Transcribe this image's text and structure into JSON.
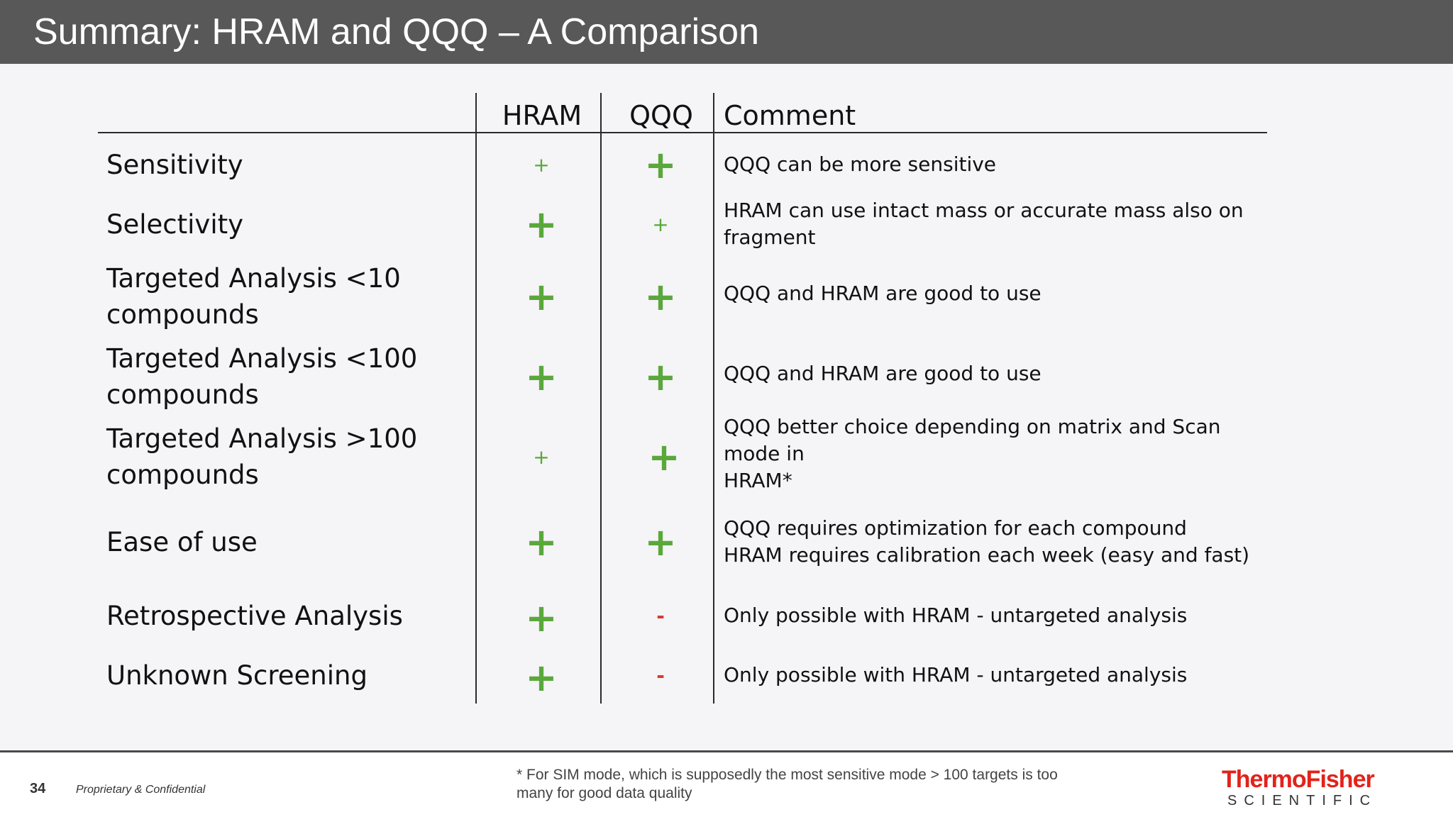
{
  "title": "Summary: HRAM and QQQ – A Comparison",
  "table": {
    "headers": {
      "hram": "HRAM",
      "qqq": "QQQ",
      "comment": "Comment"
    },
    "rows": [
      {
        "label": "Sensitivity",
        "hram": "+",
        "qqq": "+",
        "comment": [
          "QQQ can be more sensitive"
        ]
      },
      {
        "label": "Selectivity",
        "hram": "+",
        "qqq": "+",
        "comment": [
          "HRAM can use intact mass or accurate mass also on",
          "fragment"
        ]
      },
      {
        "label": "Targeted Analysis <10 compounds",
        "hram": "+",
        "qqq": "+",
        "comment": [
          "QQQ and HRAM are good to use"
        ]
      },
      {
        "label": "Targeted Analysis <100 compounds",
        "hram": "+",
        "qqq": "+",
        "comment": [
          "QQQ and HRAM are good to use"
        ]
      },
      {
        "label": "Targeted Analysis >100 compounds",
        "hram": "+",
        "qqq": "+",
        "comment": [
          "QQQ better choice depending on matrix and Scan mode in",
          "HRAM*"
        ]
      },
      {
        "label": "Ease of use",
        "hram": "+",
        "qqq": "+",
        "comment": [
          "QQQ requires optimization for each compound",
          "HRAM requires calibration each week (easy and fast)"
        ]
      },
      {
        "label": "Retrospective Analysis",
        "hram": "+",
        "qqq": "-",
        "comment": [
          "Only possible with HRAM - untargeted analysis"
        ]
      },
      {
        "label": "Unknown Screening",
        "hram": "+",
        "qqq": "-",
        "comment": [
          "Only possible with HRAM - untargeted analysis"
        ]
      }
    ]
  },
  "footer": {
    "page_number": "34",
    "confidential": "Proprietary & Confidential",
    "footnote": "* For SIM mode, which is supposedly the most sensitive mode > 100 targets is too many for good data quality",
    "logo_main": "ThermoFisher",
    "logo_sub": "SCIENTIFIC"
  },
  "colors": {
    "title_bar": "#585858",
    "plus": "#5aa83c",
    "minus": "#d43a2f",
    "logo": "#e2231a"
  }
}
